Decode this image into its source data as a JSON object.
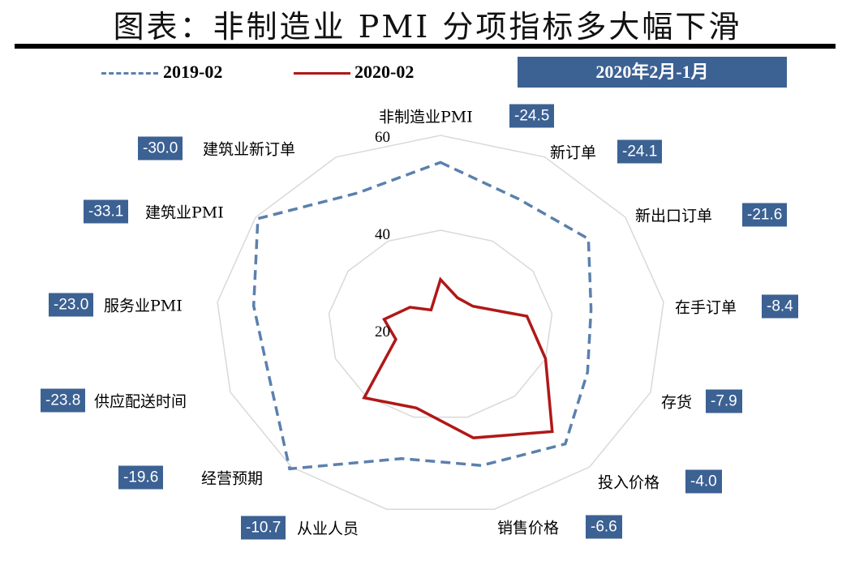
{
  "title": "图表：非制造业 PMI 分项指标多大幅下滑",
  "legend": {
    "series_a": "2019-02",
    "series_b": "2020-02"
  },
  "period_label": "2020年2月-1月",
  "chart_data": {
    "type": "radar",
    "title": "图表：非制造业 PMI 分项指标多大幅下滑",
    "categories": [
      "非制造业PMI",
      "新订单",
      "新出口订单",
      "在手订单",
      "存货",
      "投入价格",
      "销售价格",
      "从业人员",
      "经营预期",
      "供应配送时间",
      "服务业PMI",
      "建筑业PMI",
      "建筑业新订单"
    ],
    "changes": [
      "-24.5",
      "-24.1",
      "-21.6",
      "-8.4",
      "-7.9",
      "-4.0",
      "-6.6",
      "-10.7",
      "-19.6",
      "-23.8",
      "-23.0",
      "-33.1",
      "-30.0"
    ],
    "change_label": "2020年2月-1月",
    "rlim": [
      20,
      60
    ],
    "rticks": [
      "20",
      "40",
      "60"
    ],
    "grid": true,
    "legend_position": "top",
    "series": [
      {
        "name": "2019-02",
        "style": "dashed",
        "color": "#5b80ad",
        "values": [
          54.3,
          50.0,
          52.0,
          47.0,
          48.0,
          53.5,
          50.5,
          49.0,
          60.5,
          52.5,
          53.5,
          59.5,
          51.5
        ]
      },
      {
        "name": "2020-02",
        "style": "solid",
        "color": "#b01818",
        "values": [
          29.6,
          26.5,
          27.0,
          35.5,
          40.0,
          50.0,
          44.5,
          38.0,
          40.5,
          28.5,
          30.1,
          26.6,
          23.6
        ]
      }
    ]
  }
}
